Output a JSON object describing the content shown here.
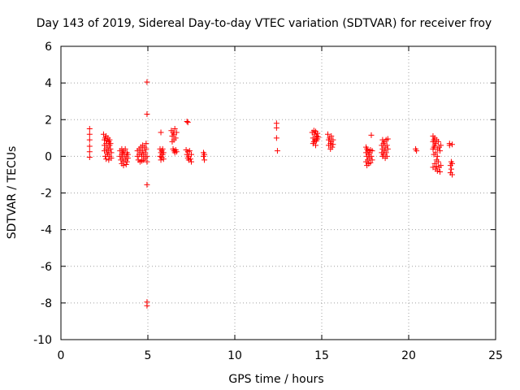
{
  "chart_data": {
    "type": "scatter",
    "title": "Day 143 of 2019, Sidereal Day-to-day VTEC variation (SDTVAR) for receiver froy",
    "xlabel": "GPS time / hours",
    "ylabel": "SDTVAR / TECUs",
    "xlim": [
      0,
      25
    ],
    "ylim": [
      -10,
      6
    ],
    "xticks": [
      0,
      5,
      10,
      15,
      20,
      25
    ],
    "yticks": [
      -10,
      -8,
      -6,
      -4,
      -2,
      0,
      2,
      4,
      6
    ],
    "grid": true,
    "legend": "none",
    "marker": "+",
    "colors": {
      "points": "#ff0000",
      "axes": "#000000",
      "grid": "#a0a0a0"
    },
    "series": [
      {
        "name": "SDTVAR",
        "points": [
          [
            1.65,
            1.5
          ],
          [
            1.65,
            1.2
          ],
          [
            1.65,
            0.9
          ],
          [
            1.65,
            0.55
          ],
          [
            1.65,
            0.25
          ],
          [
            1.65,
            -0.05
          ],
          [
            2.45,
            1.2
          ],
          [
            2.5,
            0.9
          ],
          [
            2.5,
            0.6
          ],
          [
            2.5,
            0.3
          ],
          [
            2.55,
            1.0
          ],
          [
            2.55,
            0.0
          ],
          [
            2.6,
            1.1
          ],
          [
            2.6,
            0.7
          ],
          [
            2.6,
            0.4
          ],
          [
            2.6,
            -0.15
          ],
          [
            2.65,
            0.85
          ],
          [
            2.65,
            0.2
          ],
          [
            2.7,
            1.0
          ],
          [
            2.7,
            0.5
          ],
          [
            2.7,
            0.1
          ],
          [
            2.75,
            0.8
          ],
          [
            2.75,
            0.3
          ],
          [
            2.75,
            -0.2
          ],
          [
            2.8,
            0.9
          ],
          [
            2.8,
            0.6
          ],
          [
            2.8,
            0.0
          ],
          [
            2.85,
            0.4
          ],
          [
            2.85,
            0.7
          ],
          [
            2.9,
            0.2
          ],
          [
            2.9,
            -0.1
          ],
          [
            3.4,
            0.3
          ],
          [
            3.4,
            0.0
          ],
          [
            3.45,
            -0.2
          ],
          [
            3.5,
            0.4
          ],
          [
            3.5,
            0.1
          ],
          [
            3.5,
            -0.4
          ],
          [
            3.55,
            0.2
          ],
          [
            3.55,
            -0.1
          ],
          [
            3.6,
            0.3
          ],
          [
            3.6,
            -0.3
          ],
          [
            3.6,
            -0.5
          ],
          [
            3.65,
            0.1
          ],
          [
            3.7,
            0.4
          ],
          [
            3.7,
            -0.2
          ],
          [
            3.75,
            0.0
          ],
          [
            3.75,
            -0.45
          ],
          [
            3.8,
            0.2
          ],
          [
            3.8,
            -0.3
          ],
          [
            3.85,
            0.1
          ],
          [
            3.85,
            -0.1
          ],
          [
            4.4,
            0.3
          ],
          [
            4.4,
            0.0
          ],
          [
            4.45,
            -0.2
          ],
          [
            4.5,
            0.4
          ],
          [
            4.5,
            0.1
          ],
          [
            4.55,
            -0.3
          ],
          [
            4.6,
            0.5
          ],
          [
            4.6,
            0.2
          ],
          [
            4.65,
            0.0
          ],
          [
            4.65,
            -0.25
          ],
          [
            4.7,
            0.6
          ],
          [
            4.7,
            0.3
          ],
          [
            4.75,
            0.1
          ],
          [
            4.75,
            -0.2
          ],
          [
            4.8,
            0.5
          ],
          [
            4.85,
            0.2
          ],
          [
            4.85,
            -0.1
          ],
          [
            4.9,
            0.7
          ],
          [
            4.9,
            0.4
          ],
          [
            4.95,
            0.0
          ],
          [
            4.95,
            -0.3
          ],
          [
            4.95,
            4.05
          ],
          [
            4.95,
            2.3
          ],
          [
            4.95,
            -1.55
          ],
          [
            4.95,
            -7.95
          ],
          [
            4.95,
            -8.15
          ],
          [
            5.75,
            1.3
          ],
          [
            5.7,
            0.4
          ],
          [
            5.7,
            0.0
          ],
          [
            5.75,
            0.2
          ],
          [
            5.75,
            -0.2
          ],
          [
            5.8,
            0.3
          ],
          [
            5.8,
            -0.05
          ],
          [
            5.85,
            0.4
          ],
          [
            5.85,
            0.1
          ],
          [
            5.9,
            -0.15
          ],
          [
            5.9,
            0.2
          ],
          [
            6.35,
            1.4
          ],
          [
            6.4,
            1.1
          ],
          [
            6.4,
            0.8
          ],
          [
            6.45,
            1.3
          ],
          [
            6.45,
            0.4
          ],
          [
            6.5,
            1.2
          ],
          [
            6.5,
            0.9
          ],
          [
            6.5,
            0.3
          ],
          [
            6.55,
            1.5
          ],
          [
            6.55,
            0.2
          ],
          [
            6.6,
            1.0
          ],
          [
            6.6,
            0.35
          ],
          [
            6.65,
            1.3
          ],
          [
            6.65,
            0.25
          ],
          [
            7.25,
            1.9
          ],
          [
            7.3,
            1.85
          ],
          [
            7.2,
            0.35
          ],
          [
            7.25,
            0.1
          ],
          [
            7.3,
            -0.1
          ],
          [
            7.3,
            0.25
          ],
          [
            7.35,
            -0.2
          ],
          [
            7.35,
            0.0
          ],
          [
            7.4,
            0.3
          ],
          [
            7.45,
            -0.15
          ],
          [
            7.5,
            0.1
          ],
          [
            7.5,
            -0.3
          ],
          [
            8.2,
            0.2
          ],
          [
            8.2,
            0.0
          ],
          [
            8.25,
            -0.2
          ],
          [
            8.25,
            0.1
          ],
          [
            12.4,
            1.8
          ],
          [
            12.4,
            1.55
          ],
          [
            12.4,
            1.0
          ],
          [
            12.45,
            0.3
          ],
          [
            14.45,
            1.3
          ],
          [
            14.5,
            1.0
          ],
          [
            14.5,
            0.7
          ],
          [
            14.55,
            1.4
          ],
          [
            14.55,
            0.8
          ],
          [
            14.6,
            1.2
          ],
          [
            14.6,
            0.9
          ],
          [
            14.65,
            1.35
          ],
          [
            14.65,
            0.6
          ],
          [
            14.7,
            1.1
          ],
          [
            14.7,
            0.85
          ],
          [
            14.75,
            1.25
          ],
          [
            14.75,
            0.95
          ],
          [
            14.8,
            1.05
          ],
          [
            15.35,
            1.2
          ],
          [
            15.4,
            0.9
          ],
          [
            15.4,
            0.6
          ],
          [
            15.45,
            1.0
          ],
          [
            15.5,
            0.7
          ],
          [
            15.5,
            0.4
          ],
          [
            15.55,
            1.1
          ],
          [
            15.55,
            0.8
          ],
          [
            15.6,
            0.5
          ],
          [
            15.65,
            0.9
          ],
          [
            15.65,
            0.65
          ],
          [
            17.55,
            0.5
          ],
          [
            17.55,
            0.2
          ],
          [
            17.55,
            -0.3
          ],
          [
            17.6,
            0.4
          ],
          [
            17.6,
            0.0
          ],
          [
            17.6,
            -0.5
          ],
          [
            17.65,
            0.3
          ],
          [
            17.65,
            -0.2
          ],
          [
            17.7,
            0.1
          ],
          [
            17.7,
            -0.4
          ],
          [
            17.75,
            0.2
          ],
          [
            17.75,
            -0.1
          ],
          [
            17.8,
            0.35
          ],
          [
            17.8,
            -0.35
          ],
          [
            17.85,
            1.15
          ],
          [
            17.85,
            0.0
          ],
          [
            17.9,
            0.3
          ],
          [
            17.9,
            -0.2
          ],
          [
            18.45,
            0.6
          ],
          [
            18.45,
            0.2
          ],
          [
            18.5,
            0.9
          ],
          [
            18.5,
            0.4
          ],
          [
            18.5,
            0.0
          ],
          [
            18.55,
            0.7
          ],
          [
            18.55,
            0.1
          ],
          [
            18.6,
            0.8
          ],
          [
            18.6,
            0.3
          ],
          [
            18.65,
            0.5
          ],
          [
            18.65,
            -0.1
          ],
          [
            18.7,
            0.9
          ],
          [
            18.7,
            0.2
          ],
          [
            18.75,
            0.6
          ],
          [
            18.75,
            0.0
          ],
          [
            18.8,
            0.4
          ],
          [
            18.8,
            0.95
          ],
          [
            20.4,
            0.4
          ],
          [
            20.45,
            0.3
          ],
          [
            21.4,
            1.1
          ],
          [
            21.4,
            0.8
          ],
          [
            21.4,
            0.4
          ],
          [
            21.4,
            -0.6
          ],
          [
            21.45,
            0.9
          ],
          [
            21.45,
            0.5
          ],
          [
            21.45,
            0.1
          ],
          [
            21.5,
            1.0
          ],
          [
            21.5,
            0.6
          ],
          [
            21.5,
            -0.4
          ],
          [
            21.55,
            0.7
          ],
          [
            21.55,
            0.2
          ],
          [
            21.55,
            -0.7
          ],
          [
            21.6,
            0.9
          ],
          [
            21.6,
            -0.2
          ],
          [
            21.6,
            -0.55
          ],
          [
            21.65,
            0.4
          ],
          [
            21.65,
            0.0
          ],
          [
            21.65,
            -0.8
          ],
          [
            21.7,
            0.8
          ],
          [
            21.7,
            -0.3
          ],
          [
            21.75,
            0.5
          ],
          [
            21.75,
            -0.6
          ],
          [
            21.8,
            0.3
          ],
          [
            21.8,
            -0.85
          ],
          [
            21.85,
            0.6
          ],
          [
            21.85,
            -0.5
          ],
          [
            22.35,
            0.7
          ],
          [
            22.35,
            0.6
          ],
          [
            22.4,
            -0.5
          ],
          [
            22.4,
            -0.9
          ],
          [
            22.45,
            -0.3
          ],
          [
            22.45,
            -0.7
          ],
          [
            22.5,
            0.65
          ],
          [
            22.5,
            -1.0
          ],
          [
            22.5,
            -0.4
          ]
        ]
      }
    ]
  }
}
